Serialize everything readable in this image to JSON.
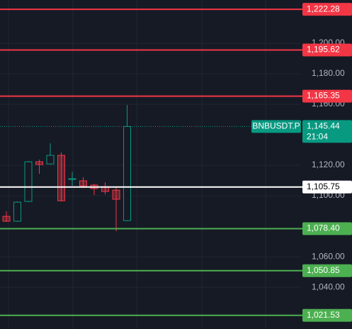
{
  "chart_data": {
    "type": "candlestick",
    "ylim": [
      1012.6,
      1228.4
    ],
    "yticks": [
      {
        "value": 1200,
        "label": "1,200.00"
      },
      {
        "value": 1180,
        "label": "1,180.00"
      },
      {
        "value": 1160,
        "label": "1,160.00"
      },
      {
        "value": 1120,
        "label": "1,120.00"
      },
      {
        "value": 1100,
        "label": "1,100.00"
      },
      {
        "value": 1060,
        "label": "1,060.00"
      },
      {
        "value": 1040,
        "label": "1,040.00"
      }
    ],
    "grid": true,
    "up_color": "#089981",
    "down_color": "#f23645",
    "candles": [
      {
        "open": 1086.5,
        "high": 1089.8,
        "low": 1082.8,
        "close": 1083.3
      },
      {
        "open": 1083.3,
        "high": 1096.3,
        "low": 1082.8,
        "close": 1095.8
      },
      {
        "open": 1096.3,
        "high": 1122.8,
        "low": 1095.8,
        "close": 1122.3
      },
      {
        "open": 1122.3,
        "high": 1123.7,
        "low": 1114.4,
        "close": 1120.5
      },
      {
        "open": 1120.9,
        "high": 1134.4,
        "low": 1120.5,
        "close": 1126.5
      },
      {
        "open": 1126.5,
        "high": 1128.4,
        "low": 1096.3,
        "close": 1096.7
      },
      {
        "open": 1110.7,
        "high": 1115.8,
        "low": 1106.5,
        "close": 1111.2
      },
      {
        "open": 1109.8,
        "high": 1112.1,
        "low": 1105.1,
        "close": 1106.5
      },
      {
        "open": 1107.0,
        "high": 1107.9,
        "low": 1100.5,
        "close": 1104.7
      },
      {
        "open": 1106.0,
        "high": 1108.8,
        "low": 1100.9,
        "close": 1102.8
      },
      {
        "open": 1103.7,
        "high": 1106.0,
        "low": 1076.7,
        "close": 1097.7
      },
      {
        "open": 1083.7,
        "high": 1159.5,
        "low": 1083.3,
        "close": 1145.44
      }
    ],
    "levels": [
      {
        "value": 1222.28,
        "label": "1,222.28",
        "color": "#f23645"
      },
      {
        "value": 1195.62,
        "label": "1,195.62",
        "color": "#f23645"
      },
      {
        "value": 1165.35,
        "label": "1,165.35",
        "color": "#f23645"
      },
      {
        "value": 1105.75,
        "label": "1,105.75",
        "color": "#ffffff"
      },
      {
        "value": 1078.4,
        "label": "1,078.40",
        "color": "#4caf50"
      },
      {
        "value": 1050.85,
        "label": "1,050.85",
        "color": "#4caf50"
      },
      {
        "value": 1021.53,
        "label": "1,021.53",
        "color": "#4caf50"
      }
    ],
    "last_price": {
      "symbol": "BNBUSDT.P",
      "value": 1145.44,
      "label": "1,145.44",
      "countdown": "21:04",
      "color": "#089981"
    }
  }
}
